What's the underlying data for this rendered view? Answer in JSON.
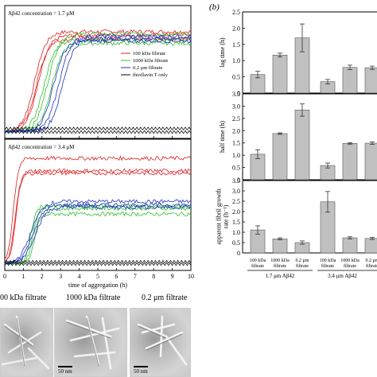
{
  "panel_b_label": "(b)",
  "chart_data": [
    {
      "type": "line",
      "annotation": "Aβ42 concentration = 1.7 μM",
      "xlim": [
        0,
        10
      ],
      "ylim": [
        0,
        1
      ],
      "xticks": [],
      "legend": {
        "placement": "right",
        "entries": [
          {
            "name": "100 kDa filtrate",
            "color": "#e02020"
          },
          {
            "name": "1000 kDa filtrate",
            "color": "#30c030"
          },
          {
            "name": "0.2 μm filtrate",
            "color": "#2030c0"
          },
          {
            "name": "thioflavin T only",
            "color": "#000000"
          }
        ]
      },
      "series": [
        {
          "name": "100 kDa filtrate",
          "color": "#e02020",
          "curves": [
            {
              "t_half": 1.6,
              "plateau": 0.87
            },
            {
              "t_half": 1.8,
              "plateau": 0.84
            },
            {
              "t_half": 1.7,
              "plateau": 0.81
            }
          ]
        },
        {
          "name": "1000 kDa filtrate",
          "color": "#30c030",
          "curves": [
            {
              "t_half": 2.3,
              "plateau": 0.85
            },
            {
              "t_half": 2.1,
              "plateau": 0.8
            },
            {
              "t_half": 2.5,
              "plateau": 0.77
            }
          ]
        },
        {
          "name": "0.2 μm filtrate",
          "color": "#2030c0",
          "curves": [
            {
              "t_half": 2.9,
              "plateau": 0.83
            },
            {
              "t_half": 2.6,
              "plateau": 0.79
            },
            {
              "t_half": 3.1,
              "plateau": 0.81
            }
          ]
        },
        {
          "name": "thioflavin T only",
          "color": "#000000",
          "baseline": [
            0.0,
            0.03
          ]
        }
      ]
    },
    {
      "type": "line",
      "annotation": "Aβ42 concentration = 3.4 μM",
      "xlabel": "time of aggregation (h)",
      "xlim": [
        0,
        10
      ],
      "ylim": [
        0,
        1
      ],
      "xticks": [
        "0",
        "1",
        "2",
        "3",
        "4",
        "5",
        "6",
        "7",
        "8",
        "9",
        "10"
      ],
      "series": [
        {
          "name": "100 kDa filtrate",
          "color": "#e02020",
          "curves": [
            {
              "t_half": 0.45,
              "plateau": 0.93
            },
            {
              "t_half": 0.6,
              "plateau": 0.82
            },
            {
              "t_half": 0.55,
              "plateau": 0.8
            }
          ]
        },
        {
          "name": "1000 kDa filtrate",
          "color": "#30c030",
          "curves": [
            {
              "t_half": 1.5,
              "plateau": 0.49
            },
            {
              "t_half": 1.6,
              "plateau": 0.44
            },
            {
              "t_half": 1.4,
              "plateau": 0.51
            }
          ]
        },
        {
          "name": "0.2 μm filtrate",
          "color": "#2030c0",
          "curves": [
            {
              "t_half": 1.4,
              "plateau": 0.55
            },
            {
              "t_half": 1.5,
              "plateau": 0.52
            },
            {
              "t_half": 1.6,
              "plateau": 0.5
            }
          ]
        },
        {
          "name": "thioflavin T only",
          "color": "#000000",
          "baseline": [
            0.0,
            0.02
          ]
        }
      ]
    },
    {
      "type": "bar",
      "ylabel": "lag time (h)",
      "ylim": [
        0,
        2.5
      ],
      "yticks": [
        "0",
        "0.5",
        "1.0",
        "1.5",
        "2.0",
        "2.5"
      ],
      "categories": [
        "100 kDa filtrate",
        "1000 kDa filtrate",
        "0.2 μm filtrate",
        "100 kDa filtrate",
        "1000 kDa filtrate",
        "0.2 μm filtrate"
      ],
      "values": [
        0.57,
        1.17,
        1.7,
        0.35,
        0.79,
        0.78
      ],
      "errors": [
        0.1,
        0.06,
        0.43,
        0.07,
        0.07,
        0.05
      ]
    },
    {
      "type": "bar",
      "ylabel": "half time (h)",
      "ylim": [
        0,
        3.5
      ],
      "yticks": [
        "0",
        "0.5",
        "1.0",
        "1.5",
        "2.0",
        "2.5",
        "3.0",
        "3.5"
      ],
      "categories": [
        "100 kDa filtrate",
        "1000 kDa filtrate",
        "0.2 μm filtrate",
        "100 kDa filtrate",
        "1000 kDa filtrate",
        "0.2 μm filtrate"
      ],
      "values": [
        1.04,
        1.88,
        2.84,
        0.58,
        1.48,
        1.49
      ],
      "errors": [
        0.18,
        0.03,
        0.25,
        0.1,
        0.03,
        0.05
      ]
    },
    {
      "type": "bar",
      "ylabel": "apparent fibril growth rate (h⁻¹)",
      "ylim": [
        0,
        3.5
      ],
      "yticks": [
        "0",
        "0.5",
        "1.0",
        "1.5",
        "2.0",
        "2.5",
        "3.0",
        "3.5"
      ],
      "categories": [
        "100 kDa filtrate",
        "1000 kDa filtrate",
        "0.2 μm filtrate",
        "100 kDa filtrate",
        "1000 kDa filtrate",
        "0.2 μm filtrate"
      ],
      "values": [
        1.11,
        0.68,
        0.5,
        2.47,
        0.73,
        0.7
      ],
      "errors": [
        0.2,
        0.05,
        0.08,
        0.5,
        0.05,
        0.05
      ],
      "group_labels": [
        "1.7 μm Aβ42",
        "3.4 μm Aβ42"
      ]
    }
  ],
  "micrographs": [
    {
      "caption": "00 kDa filtrate",
      "scale": ""
    },
    {
      "caption": "1000 kDa filtrate",
      "scale": "50 nm"
    },
    {
      "caption": "0.2 μm filtrate",
      "scale": "50 nm"
    }
  ]
}
